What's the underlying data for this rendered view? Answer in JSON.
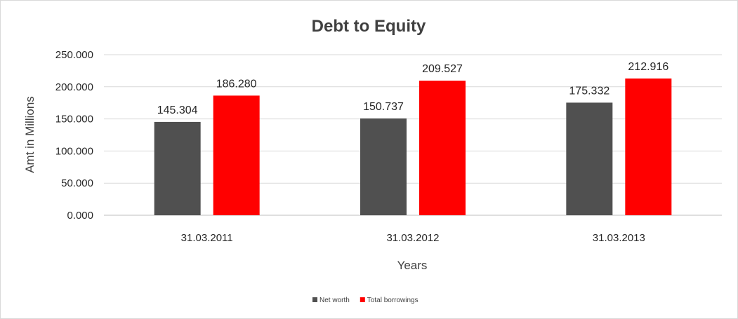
{
  "chart_data": {
    "type": "bar",
    "title": "Debt to Equity",
    "xlabel": "Years",
    "ylabel": "Amt in Millions",
    "categories": [
      "31.03.2011",
      "31.03.2012",
      "31.03.2013"
    ],
    "series": [
      {
        "name": "Net worth",
        "values": [
          145.304,
          150.737,
          175.332
        ],
        "color": "#505050",
        "labels": [
          "145.304",
          "150.737",
          "175.332"
        ]
      },
      {
        "name": "Total borrowings",
        "values": [
          186.28,
          209.527,
          212.916
        ],
        "color": "#ff0000",
        "labels": [
          "186.280",
          "209.527",
          "212.916"
        ]
      }
    ],
    "ylim": [
      0,
      250
    ],
    "yticks": [
      "0.000",
      "50.000",
      "100.000",
      "150.000",
      "200.000",
      "250.000"
    ],
    "grid": true,
    "legend": "bottom"
  }
}
